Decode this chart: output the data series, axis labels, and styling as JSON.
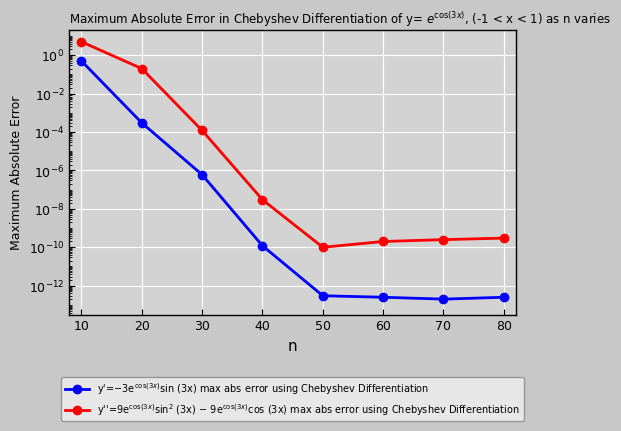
{
  "title": "Maximum Absolute Error in Chebyshev Differentiation of y= $e^{\\cos(3x)}$, (-1 < x < 1) as n varies",
  "xlabel": "n",
  "ylabel": "Maximum Absolute Error",
  "x": [
    10,
    20,
    30,
    40,
    50,
    60,
    70,
    80
  ],
  "blue_y": [
    0.5,
    0.0003,
    6e-07,
    1.2e-10,
    3e-13,
    2.5e-13,
    2e-13,
    2.5e-13
  ],
  "red_y": [
    5.0,
    0.2,
    0.00012,
    3e-08,
    1e-10,
    2e-10,
    2.5e-10,
    3e-10
  ],
  "blue_color": "#0000ff",
  "red_color": "#ff0000",
  "bg_color": "#c8c8c8",
  "plot_bg_color": "#d3d3d3",
  "legend_bg_color": "#f0f0f0",
  "ylim_bottom": 3e-14,
  "ylim_top": 20.0,
  "xlim_left": 8,
  "xlim_right": 82,
  "marker": "o",
  "linewidth": 2,
  "markersize": 6
}
